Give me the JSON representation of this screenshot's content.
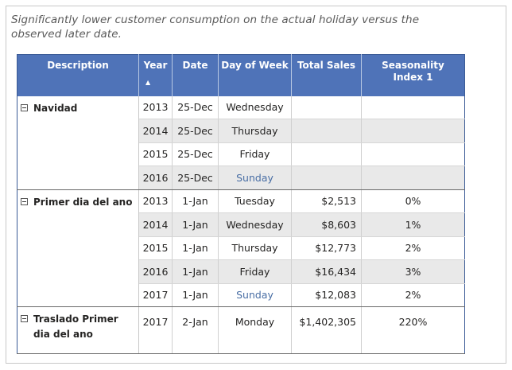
{
  "title": "Significantly lower customer consumption on the actual holiday versus the observed later date.",
  "headers": {
    "description": "Description",
    "year": "Year",
    "sort_indicator": "▲",
    "date": "Date",
    "day_of_week": "Day of Week",
    "total_sales": "Total Sales",
    "seasonality_index": "Seasonality Index 1"
  },
  "groups": [
    {
      "label": "Navidad",
      "rows": [
        {
          "year": "2013",
          "date": "25-Dec",
          "day": "Wednesday",
          "sales": "",
          "index": ""
        },
        {
          "year": "2014",
          "date": "25-Dec",
          "day": "Thursday",
          "sales": "",
          "index": ""
        },
        {
          "year": "2015",
          "date": "25-Dec",
          "day": "Friday",
          "sales": "",
          "index": ""
        },
        {
          "year": "2016",
          "date": "25-Dec",
          "day": "Sunday",
          "sales": "",
          "index": ""
        }
      ]
    },
    {
      "label": "Primer dia del ano",
      "rows": [
        {
          "year": "2013",
          "date": "1-Jan",
          "day": "Tuesday",
          "sales": "$2,513",
          "index": "0%"
        },
        {
          "year": "2014",
          "date": "1-Jan",
          "day": "Wednesday",
          "sales": "$8,603",
          "index": "1%"
        },
        {
          "year": "2015",
          "date": "1-Jan",
          "day": "Thursday",
          "sales": "$12,773",
          "index": "2%"
        },
        {
          "year": "2016",
          "date": "1-Jan",
          "day": "Friday",
          "sales": "$16,434",
          "index": "3%"
        },
        {
          "year": "2017",
          "date": "1-Jan",
          "day": "Sunday",
          "sales": "$12,083",
          "index": "2%"
        }
      ]
    },
    {
      "label": "Traslado Primer dia del ano",
      "rows": [
        {
          "year": "2017",
          "date": "2-Jan",
          "day": "Monday",
          "sales": "$1,402,305",
          "index": "220%"
        }
      ]
    }
  ],
  "colors": {
    "header_bg": "#4f73b8",
    "row_shade": "#e9e9e9",
    "weekend_text": "#4a6fa5"
  }
}
